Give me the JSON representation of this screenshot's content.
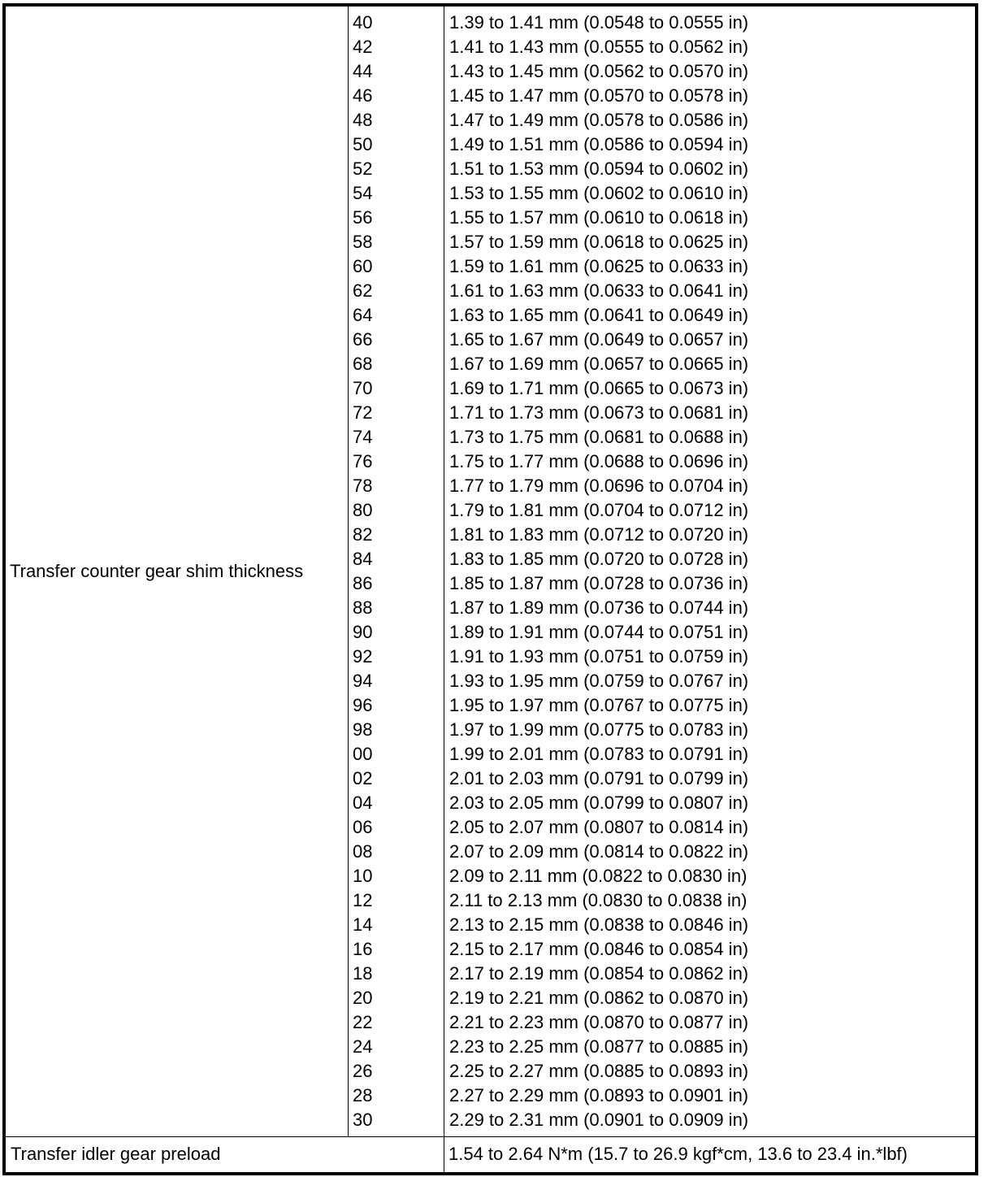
{
  "table": {
    "shim_row": {
      "label": "Transfer counter gear shim thickness",
      "entries": [
        {
          "mark": "40",
          "spec": "1.39 to 1.41 mm (0.0548 to 0.0555 in)"
        },
        {
          "mark": "42",
          "spec": "1.41 to 1.43 mm (0.0555 to 0.0562 in)"
        },
        {
          "mark": "44",
          "spec": "1.43 to 1.45 mm (0.0562 to 0.0570 in)"
        },
        {
          "mark": "46",
          "spec": "1.45 to 1.47 mm (0.0570 to 0.0578 in)"
        },
        {
          "mark": "48",
          "spec": "1.47 to 1.49 mm (0.0578 to 0.0586 in)"
        },
        {
          "mark": "50",
          "spec": "1.49 to 1.51 mm (0.0586 to 0.0594 in)"
        },
        {
          "mark": "52",
          "spec": "1.51 to 1.53 mm (0.0594 to 0.0602 in)"
        },
        {
          "mark": "54",
          "spec": "1.53 to 1.55 mm (0.0602 to 0.0610 in)"
        },
        {
          "mark": "56",
          "spec": "1.55 to 1.57 mm (0.0610 to 0.0618 in)"
        },
        {
          "mark": "58",
          "spec": "1.57 to 1.59 mm (0.0618 to 0.0625 in)"
        },
        {
          "mark": "60",
          "spec": "1.59 to 1.61 mm (0.0625 to 0.0633 in)"
        },
        {
          "mark": "62",
          "spec": "1.61 to 1.63 mm (0.0633 to 0.0641 in)"
        },
        {
          "mark": "64",
          "spec": "1.63 to 1.65 mm (0.0641 to 0.0649 in)"
        },
        {
          "mark": "66",
          "spec": "1.65 to 1.67 mm (0.0649 to 0.0657 in)"
        },
        {
          "mark": "68",
          "spec": "1.67 to 1.69 mm (0.0657 to 0.0665 in)"
        },
        {
          "mark": "70",
          "spec": "1.69 to 1.71 mm (0.0665 to 0.0673 in)"
        },
        {
          "mark": "72",
          "spec": "1.71 to 1.73 mm (0.0673 to 0.0681 in)"
        },
        {
          "mark": "74",
          "spec": "1.73 to 1.75 mm (0.0681 to 0.0688 in)"
        },
        {
          "mark": "76",
          "spec": "1.75 to 1.77 mm (0.0688 to 0.0696 in)"
        },
        {
          "mark": "78",
          "spec": "1.77 to 1.79 mm (0.0696 to 0.0704 in)"
        },
        {
          "mark": "80",
          "spec": "1.79 to 1.81 mm (0.0704 to 0.0712 in)"
        },
        {
          "mark": "82",
          "spec": "1.81 to 1.83 mm (0.0712 to 0.0720 in)"
        },
        {
          "mark": "84",
          "spec": "1.83 to 1.85 mm (0.0720 to 0.0728 in)"
        },
        {
          "mark": "86",
          "spec": "1.85 to 1.87 mm (0.0728 to 0.0736 in)"
        },
        {
          "mark": "88",
          "spec": "1.87 to 1.89 mm (0.0736 to 0.0744 in)"
        },
        {
          "mark": "90",
          "spec": "1.89 to 1.91 mm (0.0744 to 0.0751 in)"
        },
        {
          "mark": "92",
          "spec": "1.91 to 1.93 mm (0.0751 to 0.0759 in)"
        },
        {
          "mark": "94",
          "spec": "1.93 to 1.95 mm (0.0759 to 0.0767 in)"
        },
        {
          "mark": "96",
          "spec": "1.95 to 1.97 mm (0.0767 to 0.0775 in)"
        },
        {
          "mark": "98",
          "spec": "1.97 to 1.99 mm (0.0775 to 0.0783 in)"
        },
        {
          "mark": "00",
          "spec": "1.99 to 2.01 mm (0.0783 to 0.0791 in)"
        },
        {
          "mark": "02",
          "spec": "2.01 to 2.03 mm (0.0791 to 0.0799 in)"
        },
        {
          "mark": "04",
          "spec": "2.03 to 2.05 mm (0.0799 to 0.0807 in)"
        },
        {
          "mark": "06",
          "spec": "2.05 to 2.07 mm (0.0807 to 0.0814 in)"
        },
        {
          "mark": "08",
          "spec": "2.07 to 2.09 mm (0.0814 to 0.0822 in)"
        },
        {
          "mark": "10",
          "spec": "2.09 to 2.11 mm (0.0822 to 0.0830 in)"
        },
        {
          "mark": "12",
          "spec": "2.11 to 2.13 mm (0.0830 to 0.0838 in)"
        },
        {
          "mark": "14",
          "spec": "2.13 to 2.15 mm (0.0838 to 0.0846 in)"
        },
        {
          "mark": "16",
          "spec": "2.15 to 2.17 mm (0.0846 to 0.0854 in)"
        },
        {
          "mark": "18",
          "spec": "2.17 to 2.19 mm (0.0854 to 0.0862 in)"
        },
        {
          "mark": "20",
          "spec": "2.19 to 2.21 mm (0.0862 to 0.0870 in)"
        },
        {
          "mark": "22",
          "spec": "2.21 to 2.23 mm (0.0870 to 0.0877 in)"
        },
        {
          "mark": "24",
          "spec": "2.23 to 2.25 mm (0.0877 to 0.0885 in)"
        },
        {
          "mark": "26",
          "spec": "2.25 to 2.27 mm (0.0885 to 0.0893 in)"
        },
        {
          "mark": "28",
          "spec": "2.27 to 2.29 mm (0.0893 to 0.0901 in)"
        },
        {
          "mark": "30",
          "spec": "2.29 to 2.31 mm (0.0901 to 0.0909 in)"
        }
      ]
    },
    "preload_row": {
      "label": "Transfer idler gear preload",
      "spec": "1.54 to 2.64 N*m (15.7 to 26.9 kgf*cm, 13.6 to 23.4 in.*lbf)"
    }
  }
}
